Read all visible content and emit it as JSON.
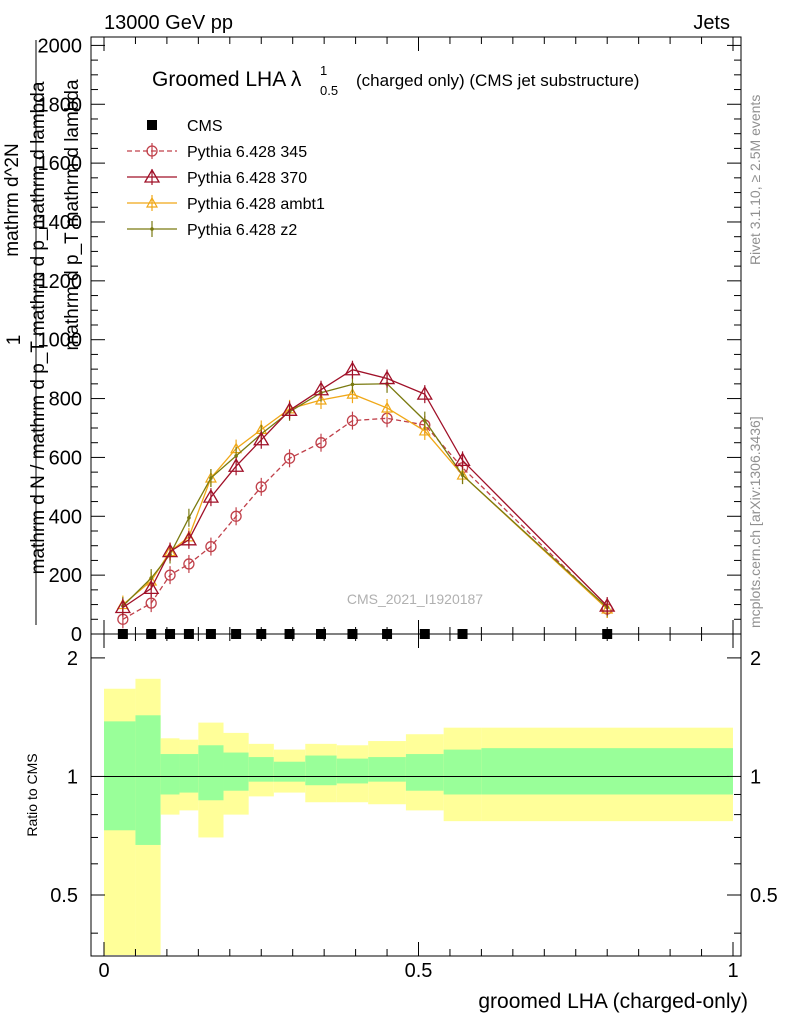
{
  "header": {
    "left": "13000 GeV pp",
    "right": "Jets"
  },
  "side_text": {
    "rivet": "Rivet 3.1.10, ≥ 2.5M events",
    "mcplots": "mcplots.cern.ch [arXiv:1306.3436]"
  },
  "chart_data": {
    "type": "line",
    "title_main": "Groomed LHA λ",
    "title_sup": "1",
    "title_sub": "0.5",
    "title_rest": "(charged only) (CMS jet substructure)",
    "watermark": "CMS_2021_I1920187",
    "ylabel_num": "1",
    "ylabel_den": "mathrm d N / mathrm d p_T mathrm d p_mathrm d lambda",
    "ylabel_rhs_top": "mathrm d^2N",
    "ylabel_rhs_mid": "mathrm d p_T mathrm d lambda",
    "ratio_ylabel": "Ratio to CMS",
    "xlabel": "groomed LHA (charged-only)",
    "xlim": [
      -0.025,
      1.0
    ],
    "ylim": [
      0,
      2050
    ],
    "ratio_ylim": [
      0.35,
      2.3
    ],
    "ratio_scale": "log",
    "xticks": [
      "0",
      "0.5",
      "1"
    ],
    "yticks": [
      "0",
      "200",
      "400",
      "600",
      "800",
      "1000",
      "1200",
      "1400",
      "1600",
      "1800",
      "2000"
    ],
    "ratio_yticks": [
      "0.5",
      "1",
      "2"
    ],
    "x": [
      0.03,
      0.075,
      0.105,
      0.135,
      0.17,
      0.21,
      0.25,
      0.295,
      0.345,
      0.395,
      0.45,
      0.51,
      0.57,
      0.8
    ],
    "cms": [
      0,
      0,
      0,
      0,
      0,
      0,
      0,
      0,
      0,
      0,
      0,
      0,
      0,
      0
    ],
    "series": [
      {
        "name": "CMS",
        "color": "#000000",
        "marker": "square",
        "values": [
          0,
          0,
          0,
          0,
          0,
          0,
          0,
          0,
          0,
          0,
          0,
          0,
          0,
          0
        ]
      },
      {
        "name": "Pythia 6.428 345",
        "color": "#c0404a",
        "marker": "circle",
        "dashed": true,
        "values": [
          50,
          105,
          200,
          238,
          297,
          400,
          500,
          597,
          650,
          725,
          733,
          710,
          565,
          85
        ]
      },
      {
        "name": "Pythia 6.428 370",
        "color": "#a01028",
        "marker": "triangle",
        "dashed": false,
        "values": [
          90,
          155,
          280,
          320,
          465,
          570,
          660,
          760,
          830,
          898,
          868,
          815,
          590,
          95
        ]
      },
      {
        "name": "Pythia 6.428 ambt1",
        "color": "#f0a818",
        "marker": "triangle-small",
        "dashed": false,
        "values": [
          100,
          180,
          280,
          330,
          530,
          630,
          695,
          765,
          795,
          815,
          768,
          690,
          540,
          85
        ]
      },
      {
        "name": "Pythia 6.428 z2",
        "color": "#7a7a10",
        "marker": "dot",
        "dashed": false,
        "values": [
          95,
          190,
          270,
          395,
          530,
          605,
          680,
          755,
          820,
          848,
          850,
          725,
          540,
          90
        ]
      }
    ],
    "ratio_band_edges": [
      0.0,
      0.05,
      0.09,
      0.12,
      0.15,
      0.19,
      0.23,
      0.27,
      0.32,
      0.37,
      0.42,
      0.48,
      0.54,
      0.6,
      1.0
    ],
    "ratio_band_green": [
      [
        0.73,
        1.38
      ],
      [
        0.67,
        1.43
      ],
      [
        0.9,
        1.14
      ],
      [
        0.91,
        1.14
      ],
      [
        0.87,
        1.2
      ],
      [
        0.92,
        1.15
      ],
      [
        0.97,
        1.12
      ],
      [
        0.97,
        1.09
      ],
      [
        0.95,
        1.13
      ],
      [
        0.96,
        1.11
      ],
      [
        0.97,
        1.12
      ],
      [
        0.92,
        1.14
      ],
      [
        0.9,
        1.17
      ],
      [
        0.9,
        1.18
      ]
    ],
    "ratio_band_yellow": [
      [
        0.35,
        1.67
      ],
      [
        0.35,
        1.77
      ],
      [
        0.8,
        1.25
      ],
      [
        0.82,
        1.24
      ],
      [
        0.7,
        1.37
      ],
      [
        0.8,
        1.29
      ],
      [
        0.89,
        1.21
      ],
      [
        0.91,
        1.17
      ],
      [
        0.86,
        1.21
      ],
      [
        0.86,
        1.2
      ],
      [
        0.85,
        1.23
      ],
      [
        0.82,
        1.28
      ],
      [
        0.77,
        1.33
      ],
      [
        0.77,
        1.33
      ]
    ],
    "grid": false,
    "legend_position": "top-left"
  }
}
